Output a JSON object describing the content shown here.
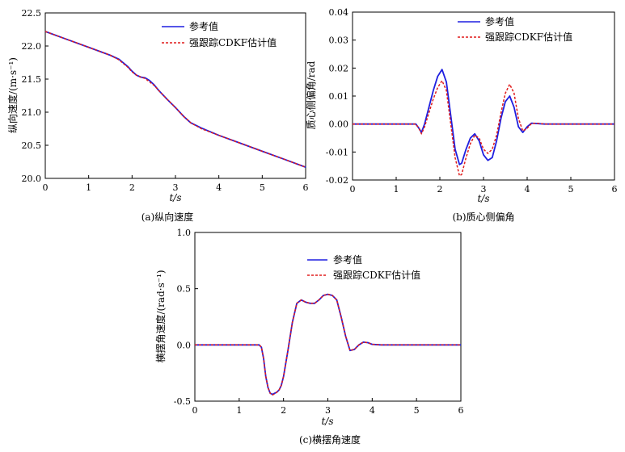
{
  "chart_data": [
    {
      "id": "a",
      "type": "line",
      "caption": "(a)纵向速度",
      "xlabel": "t/s",
      "ylabel": "纵向速度/(m·s⁻¹)",
      "xlim": [
        0,
        6
      ],
      "ylim": [
        20.0,
        22.5
      ],
      "xticks": [
        0,
        1,
        2,
        3,
        4,
        5,
        6
      ],
      "yticks": [
        "20.0",
        "20.5",
        "21.0",
        "21.5",
        "22.0",
        "22.5"
      ],
      "grid": false,
      "legend_position": "top-center",
      "series": [
        {
          "name": "参考值",
          "color": "#1f1fe0",
          "style": "solid",
          "x": [
            0,
            0.5,
            1.0,
            1.5,
            1.7,
            1.9,
            2.0,
            2.1,
            2.2,
            2.3,
            2.4,
            2.5,
            2.6,
            2.8,
            3.0,
            3.2,
            3.35,
            3.6,
            4.0,
            4.5,
            5.0,
            5.5,
            6.0
          ],
          "y": [
            22.22,
            22.1,
            21.98,
            21.86,
            21.8,
            21.69,
            21.62,
            21.56,
            21.53,
            21.52,
            21.48,
            21.42,
            21.34,
            21.2,
            21.07,
            20.93,
            20.84,
            20.76,
            20.65,
            20.53,
            20.41,
            20.29,
            20.17
          ]
        },
        {
          "name": "强跟踪CDKF估计值",
          "color": "#e01c1c",
          "style": "dashed",
          "x": [
            0,
            0.5,
            1.0,
            1.5,
            1.7,
            1.9,
            2.0,
            2.1,
            2.2,
            2.3,
            2.4,
            2.5,
            2.6,
            2.8,
            3.0,
            3.2,
            3.35,
            3.6,
            4.0,
            4.5,
            5.0,
            5.5,
            6.0
          ],
          "y": [
            22.22,
            22.1,
            21.98,
            21.86,
            21.79,
            21.68,
            21.61,
            21.56,
            21.53,
            21.51,
            21.46,
            21.41,
            21.34,
            21.2,
            21.07,
            20.93,
            20.84,
            20.75,
            20.65,
            20.53,
            20.41,
            20.29,
            20.17
          ]
        }
      ]
    },
    {
      "id": "b",
      "type": "line",
      "caption": "(b)质心侧偏角",
      "xlabel": "t/s",
      "ylabel": "质心侧偏角/rad",
      "xlim": [
        0,
        6
      ],
      "ylim": [
        -0.02,
        0.04
      ],
      "xticks": [
        0,
        1,
        2,
        3,
        4,
        5,
        6
      ],
      "yticks": [
        "-0.02",
        "-0.01",
        "0.00",
        "0.01",
        "0.02",
        "0.03",
        "0.04"
      ],
      "grid": false,
      "legend_position": "top-right",
      "series": [
        {
          "name": "参考值",
          "color": "#1f1fe0",
          "style": "solid",
          "x": [
            0,
            1.0,
            1.45,
            1.52,
            1.58,
            1.65,
            1.75,
            1.85,
            1.95,
            2.05,
            2.15,
            2.25,
            2.35,
            2.45,
            2.5,
            2.6,
            2.7,
            2.8,
            2.9,
            3.0,
            3.1,
            3.2,
            3.3,
            3.4,
            3.5,
            3.6,
            3.7,
            3.8,
            3.9,
            4.0,
            4.1,
            4.2,
            4.4,
            6.0
          ],
          "y": [
            0,
            0,
            0,
            -0.0015,
            -0.003,
            0.0,
            0.006,
            0.012,
            0.017,
            0.0195,
            0.015,
            0.003,
            -0.009,
            -0.0145,
            -0.014,
            -0.009,
            -0.005,
            -0.0035,
            -0.006,
            -0.011,
            -0.013,
            -0.012,
            -0.006,
            0.002,
            0.008,
            0.01,
            0.006,
            -0.001,
            -0.003,
            -0.001,
            0.0003,
            0.0002,
            0,
            0
          ]
        },
        {
          "name": "强跟踪CDKF估计值",
          "color": "#e01c1c",
          "style": "dashed",
          "x": [
            0,
            1.0,
            1.45,
            1.52,
            1.58,
            1.65,
            1.75,
            1.85,
            1.95,
            2.05,
            2.15,
            2.25,
            2.35,
            2.45,
            2.5,
            2.6,
            2.7,
            2.8,
            2.9,
            3.0,
            3.1,
            3.2,
            3.3,
            3.4,
            3.5,
            3.6,
            3.7,
            3.8,
            3.9,
            4.0,
            4.1,
            4.2,
            4.4,
            6.0
          ],
          "y": [
            0,
            0,
            0,
            -0.0015,
            -0.0035,
            -0.001,
            0.004,
            0.009,
            0.013,
            0.0155,
            0.012,
            0.0,
            -0.012,
            -0.0185,
            -0.018,
            -0.012,
            -0.007,
            -0.004,
            -0.005,
            -0.009,
            -0.0105,
            -0.009,
            -0.004,
            0.004,
            0.011,
            0.0142,
            0.011,
            0.002,
            -0.0025,
            -0.0015,
            0.0002,
            0.0003,
            0,
            0
          ]
        }
      ]
    },
    {
      "id": "c",
      "type": "line",
      "caption": "(c)横摆角速度",
      "xlabel": "t/s",
      "ylabel": "横摆角速度/(rad·s⁻¹)",
      "xlim": [
        0,
        6
      ],
      "ylim": [
        -0.5,
        1.0
      ],
      "xticks": [
        0,
        1,
        2,
        3,
        4,
        5,
        6
      ],
      "yticks": [
        "-0.5",
        "0.0",
        "0.5",
        "1.0"
      ],
      "grid": false,
      "legend_position": "top-right",
      "series": [
        {
          "name": "参考值",
          "color": "#1f1fe0",
          "style": "solid",
          "x": [
            0,
            1.0,
            1.45,
            1.5,
            1.55,
            1.6,
            1.65,
            1.7,
            1.75,
            1.8,
            1.85,
            1.9,
            1.95,
            2.0,
            2.1,
            2.2,
            2.3,
            2.4,
            2.5,
            2.6,
            2.7,
            2.8,
            2.9,
            3.0,
            3.1,
            3.2,
            3.3,
            3.4,
            3.5,
            3.6,
            3.7,
            3.8,
            3.9,
            4.0,
            4.2,
            6.0
          ],
          "y": [
            0,
            0,
            0,
            -0.02,
            -0.12,
            -0.28,
            -0.38,
            -0.43,
            -0.44,
            -0.43,
            -0.42,
            -0.4,
            -0.36,
            -0.28,
            -0.05,
            0.2,
            0.37,
            0.4,
            0.38,
            0.37,
            0.37,
            0.4,
            0.44,
            0.45,
            0.44,
            0.4,
            0.25,
            0.08,
            -0.05,
            -0.04,
            0.0,
            0.025,
            0.02,
            0.005,
            0,
            0
          ]
        },
        {
          "name": "强跟踪CDKF估计值",
          "color": "#e01c1c",
          "style": "dashed",
          "x": [
            0,
            1.0,
            1.45,
            1.5,
            1.55,
            1.6,
            1.65,
            1.7,
            1.75,
            1.8,
            1.85,
            1.9,
            1.95,
            2.0,
            2.1,
            2.2,
            2.3,
            2.4,
            2.5,
            2.6,
            2.7,
            2.8,
            2.9,
            3.0,
            3.1,
            3.2,
            3.3,
            3.4,
            3.5,
            3.6,
            3.7,
            3.8,
            3.9,
            4.0,
            4.2,
            6.0
          ],
          "y": [
            0,
            0,
            0,
            -0.02,
            -0.12,
            -0.28,
            -0.38,
            -0.43,
            -0.445,
            -0.435,
            -0.42,
            -0.4,
            -0.36,
            -0.28,
            -0.05,
            0.2,
            0.37,
            0.4,
            0.38,
            0.37,
            0.37,
            0.4,
            0.44,
            0.45,
            0.44,
            0.4,
            0.25,
            0.08,
            -0.05,
            -0.04,
            0.0,
            0.025,
            0.02,
            0.005,
            0,
            0
          ]
        }
      ]
    }
  ]
}
